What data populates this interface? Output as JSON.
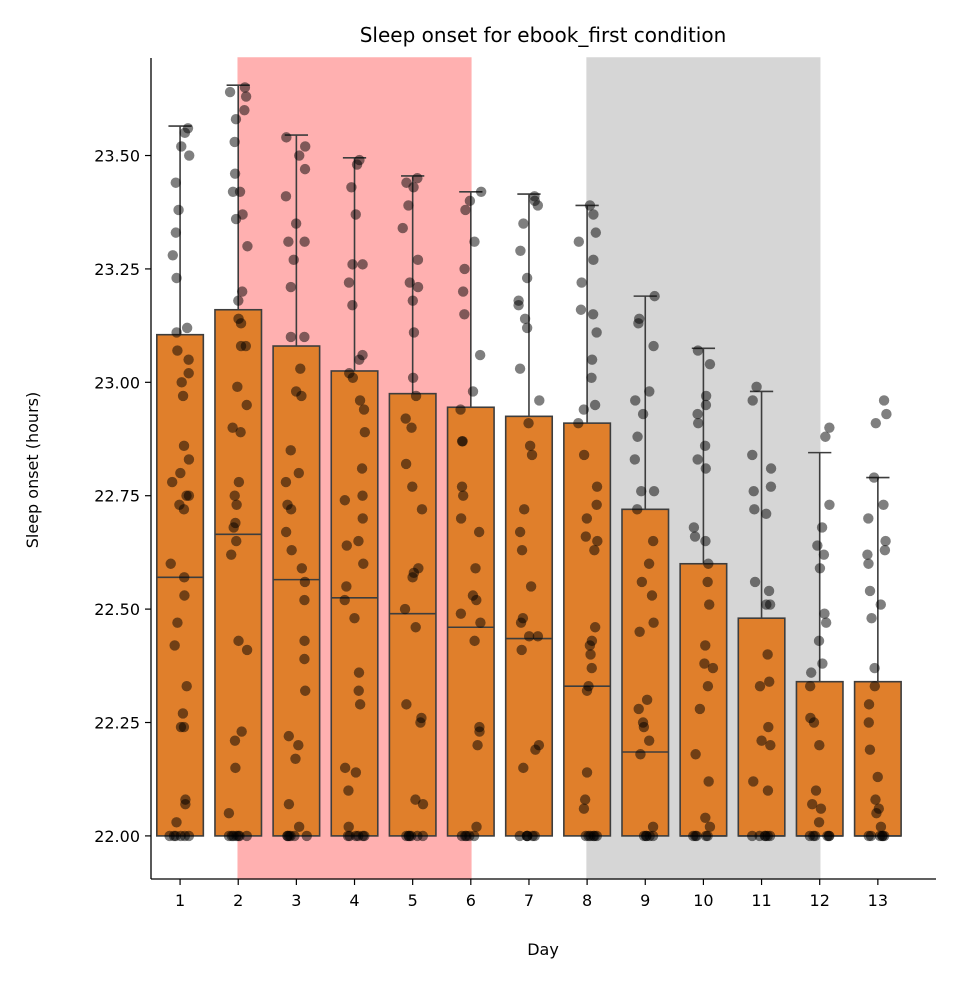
{
  "chart_data": {
    "type": "box",
    "title": "Sleep onset for ebook_first condition",
    "xlabel": "Day",
    "ylabel": "Sleep onset (hours)",
    "ylim": [
      21.905,
      23.715
    ],
    "xlim": [
      -0.5,
      13.0
    ],
    "yticks": [
      "22.00",
      "22.25",
      "22.50",
      "22.75",
      "23.00",
      "23.25",
      "23.50"
    ],
    "categories": [
      "1",
      "2",
      "3",
      "4",
      "5",
      "6",
      "7",
      "8",
      "9",
      "10",
      "11",
      "12",
      "13"
    ],
    "box_color": "#e07f2b",
    "point_color": "#000000",
    "shaded_spans": [
      {
        "from_day": "2",
        "to_day": "6",
        "color": "#ffb0b0"
      },
      {
        "from_day": "8",
        "to_day": "12",
        "color": "#d6d6d6"
      }
    ],
    "boxes": [
      {
        "q1": 22.0,
        "median": 22.57,
        "q3": 23.105,
        "whisker_high": 23.565
      },
      {
        "q1": 22.0,
        "median": 22.665,
        "q3": 23.16,
        "whisker_high": 23.655
      },
      {
        "q1": 22.0,
        "median": 22.565,
        "q3": 23.08,
        "whisker_high": 23.545
      },
      {
        "q1": 22.0,
        "median": 22.525,
        "q3": 23.025,
        "whisker_high": 23.495
      },
      {
        "q1": 22.0,
        "median": 22.49,
        "q3": 22.975,
        "whisker_high": 23.455
      },
      {
        "q1": 22.0,
        "median": 22.46,
        "q3": 22.945,
        "whisker_high": 23.42
      },
      {
        "q1": 22.0,
        "median": 22.435,
        "q3": 22.925,
        "whisker_high": 23.415
      },
      {
        "q1": 22.0,
        "median": 22.33,
        "q3": 22.91,
        "whisker_high": 23.39
      },
      {
        "q1": 22.0,
        "median": 22.185,
        "q3": 22.72,
        "whisker_high": 23.19
      },
      {
        "q1": 22.0,
        "median": 22.0,
        "q3": 22.6,
        "whisker_high": 23.075
      },
      {
        "q1": 22.0,
        "median": 22.0,
        "q3": 22.48,
        "whisker_high": 22.98
      },
      {
        "q1": 22.0,
        "median": 22.0,
        "q3": 22.34,
        "whisker_high": 22.845
      },
      {
        "q1": 22.0,
        "median": 22.0,
        "q3": 22.34,
        "whisker_high": 22.79
      }
    ],
    "points": [
      [
        22.0,
        22.0,
        22.0,
        22.0,
        22.0,
        22.0,
        22.03,
        22.07,
        22.08,
        22.24,
        22.24,
        22.27,
        22.33,
        22.42,
        22.47,
        22.53,
        22.57,
        22.6,
        22.72,
        22.73,
        22.75,
        22.75,
        22.78,
        22.8,
        22.83,
        22.86,
        22.97,
        23.0,
        23.02,
        23.05,
        23.07,
        23.11,
        23.12,
        23.23,
        23.28,
        23.33,
        23.38,
        23.44,
        23.5,
        23.52,
        23.55,
        23.56
      ],
      [
        22.0,
        22.0,
        22.0,
        22.0,
        22.0,
        22.0,
        22.0,
        22.05,
        22.15,
        22.21,
        22.23,
        22.41,
        22.43,
        22.62,
        22.65,
        22.68,
        22.69,
        22.73,
        22.75,
        22.78,
        22.89,
        22.9,
        22.95,
        22.99,
        23.08,
        23.08,
        23.13,
        23.14,
        23.18,
        23.2,
        23.3,
        23.36,
        23.37,
        23.42,
        23.42,
        23.46,
        23.53,
        23.58,
        23.6,
        23.63,
        23.64,
        23.65
      ],
      [
        22.0,
        22.0,
        22.0,
        22.0,
        22.0,
        22.0,
        22.02,
        22.07,
        22.17,
        22.2,
        22.22,
        22.32,
        22.39,
        22.43,
        22.52,
        22.56,
        22.59,
        22.63,
        22.67,
        22.72,
        22.73,
        22.78,
        22.8,
        22.85,
        22.97,
        22.98,
        23.03,
        23.1,
        23.1,
        23.21,
        23.27,
        23.31,
        23.31,
        23.35,
        23.41,
        23.47,
        23.5,
        23.52,
        23.54
      ],
      [
        22.0,
        22.0,
        22.0,
        22.0,
        22.0,
        22.0,
        22.02,
        22.1,
        22.14,
        22.15,
        22.29,
        22.32,
        22.36,
        22.48,
        22.52,
        22.55,
        22.6,
        22.64,
        22.65,
        22.7,
        22.74,
        22.75,
        22.81,
        22.89,
        22.94,
        22.96,
        23.01,
        23.02,
        23.05,
        23.06,
        23.17,
        23.22,
        23.26,
        23.26,
        23.37,
        23.43,
        23.48,
        23.49
      ],
      [
        22.0,
        22.0,
        22.0,
        22.0,
        22.0,
        22.0,
        22.07,
        22.08,
        22.25,
        22.26,
        22.29,
        22.46,
        22.5,
        22.57,
        22.58,
        22.59,
        22.72,
        22.77,
        22.82,
        22.9,
        22.92,
        22.97,
        23.01,
        23.11,
        23.18,
        23.21,
        23.22,
        23.27,
        23.34,
        23.39,
        23.43,
        23.44,
        23.45
      ],
      [
        22.0,
        22.0,
        22.0,
        22.0,
        22.0,
        22.02,
        22.2,
        22.23,
        22.24,
        22.43,
        22.47,
        22.49,
        22.52,
        22.53,
        22.59,
        22.67,
        22.7,
        22.75,
        22.77,
        22.87,
        22.87,
        22.94,
        22.98,
        23.06,
        23.15,
        23.2,
        23.25,
        23.31,
        23.38,
        23.4,
        23.42
      ],
      [
        22.0,
        22.0,
        22.0,
        22.0,
        22.0,
        22.0,
        22.15,
        22.19,
        22.2,
        22.41,
        22.44,
        22.44,
        22.47,
        22.48,
        22.55,
        22.63,
        22.67,
        22.72,
        22.84,
        22.86,
        22.91,
        22.96,
        23.03,
        23.12,
        23.14,
        23.17,
        23.18,
        23.23,
        23.29,
        23.35,
        23.39,
        23.4,
        23.41
      ],
      [
        22.0,
        22.0,
        22.0,
        22.0,
        22.0,
        22.0,
        22.06,
        22.08,
        22.14,
        22.32,
        22.33,
        22.37,
        22.4,
        22.42,
        22.43,
        22.46,
        22.63,
        22.65,
        22.66,
        22.7,
        22.73,
        22.77,
        22.84,
        22.91,
        22.94,
        22.95,
        23.01,
        23.05,
        23.11,
        23.15,
        23.16,
        23.22,
        23.27,
        23.31,
        23.33,
        23.37,
        23.39
      ],
      [
        22.0,
        22.0,
        22.0,
        22.0,
        22.0,
        22.02,
        22.18,
        22.21,
        22.24,
        22.25,
        22.28,
        22.3,
        22.45,
        22.47,
        22.53,
        22.56,
        22.6,
        22.65,
        22.72,
        22.76,
        22.76,
        22.83,
        22.88,
        22.93,
        22.96,
        22.98,
        23.08,
        23.13,
        23.14,
        23.19
      ],
      [
        22.0,
        22.0,
        22.0,
        22.0,
        22.0,
        22.02,
        22.04,
        22.12,
        22.18,
        22.28,
        22.33,
        22.37,
        22.38,
        22.42,
        22.51,
        22.56,
        22.6,
        22.65,
        22.66,
        22.68,
        22.81,
        22.83,
        22.86,
        22.91,
        22.93,
        22.95,
        22.97,
        23.04,
        23.07
      ],
      [
        22.0,
        22.0,
        22.0,
        22.0,
        22.0,
        22.0,
        22.1,
        22.12,
        22.2,
        22.21,
        22.24,
        22.33,
        22.34,
        22.4,
        22.51,
        22.51,
        22.54,
        22.56,
        22.71,
        22.72,
        22.76,
        22.77,
        22.81,
        22.84,
        22.96,
        22.99
      ],
      [
        22.0,
        22.0,
        22.0,
        22.0,
        22.0,
        22.0,
        22.03,
        22.06,
        22.07,
        22.1,
        22.2,
        22.25,
        22.26,
        22.33,
        22.36,
        22.38,
        22.43,
        22.47,
        22.49,
        22.59,
        22.62,
        22.64,
        22.68,
        22.73,
        22.88,
        22.9
      ],
      [
        22.0,
        22.0,
        22.0,
        22.0,
        22.0,
        22.0,
        22.02,
        22.05,
        22.06,
        22.08,
        22.13,
        22.19,
        22.25,
        22.29,
        22.33,
        22.37,
        22.48,
        22.51,
        22.54,
        22.6,
        22.62,
        22.63,
        22.65,
        22.7,
        22.73,
        22.79,
        22.91,
        22.93,
        22.96
      ]
    ]
  }
}
